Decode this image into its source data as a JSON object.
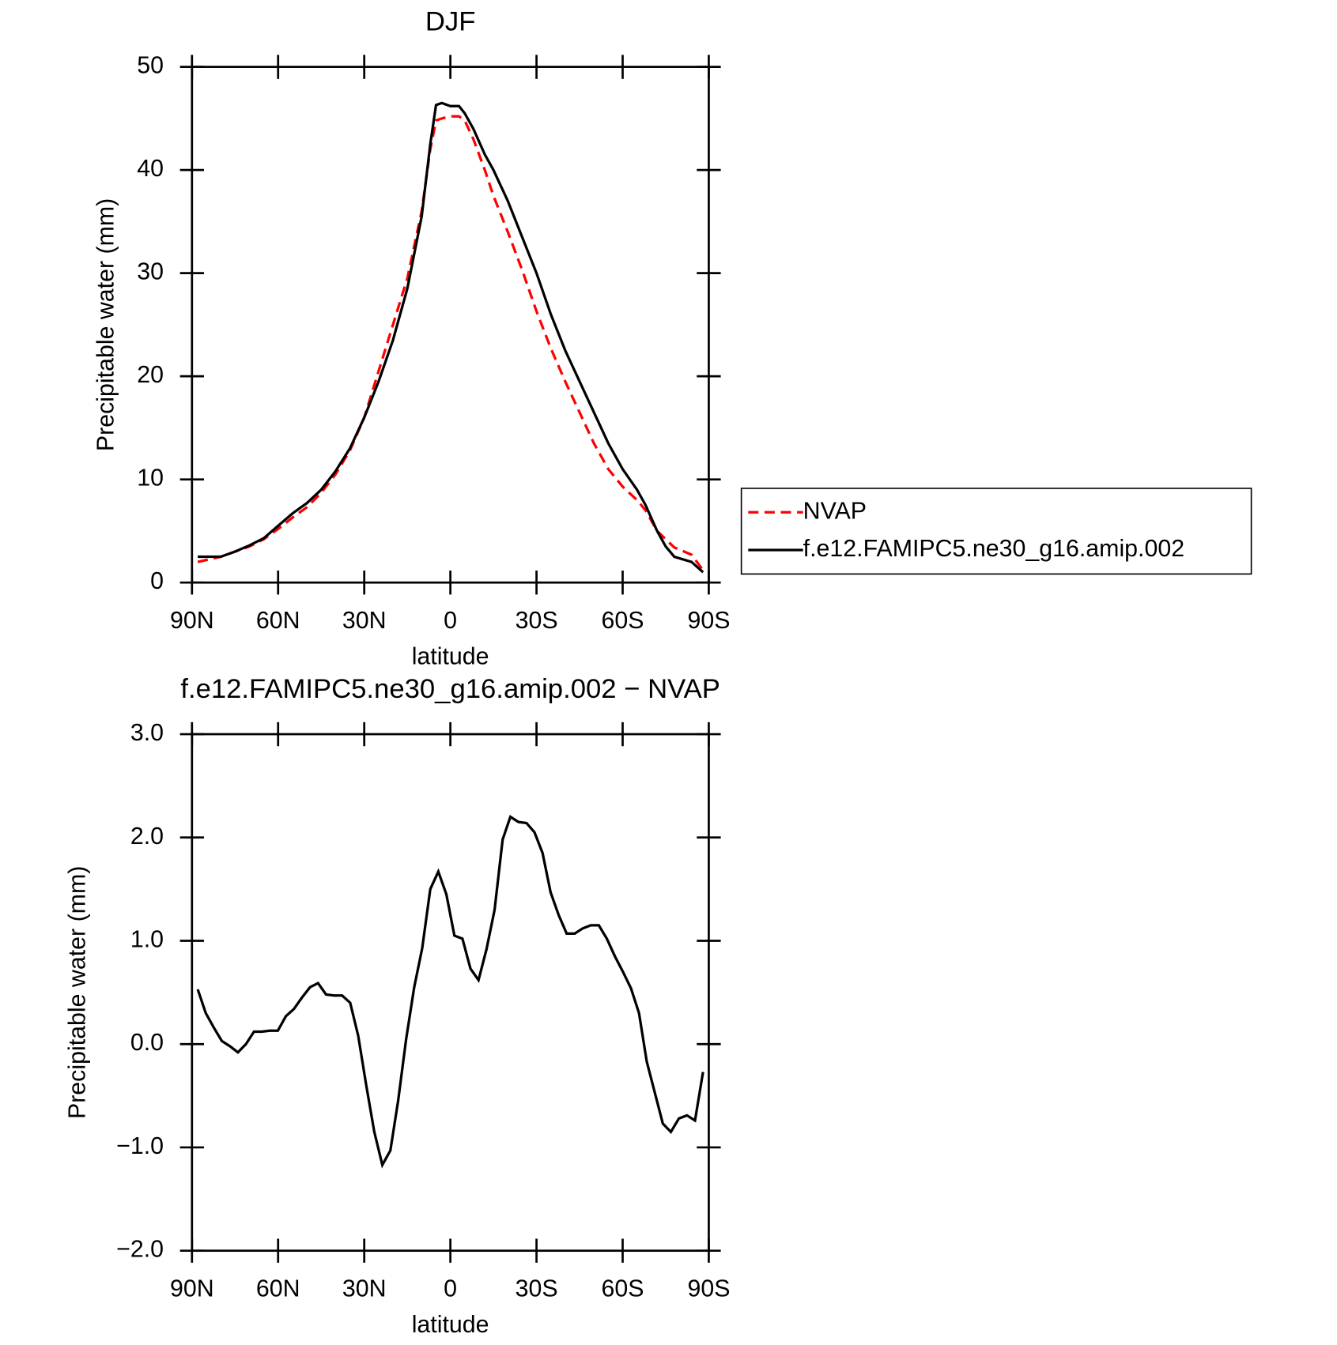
{
  "chart_data": [
    {
      "type": "line",
      "title": "DJF",
      "xlabel": "latitude",
      "ylabel": "Precipitable water (mm)",
      "xlim": [
        90,
        -90
      ],
      "xticks": [
        {
          "value": 90,
          "label": "90N"
        },
        {
          "value": 60,
          "label": "60N"
        },
        {
          "value": 30,
          "label": "30N"
        },
        0,
        {
          "value": -30,
          "label": "30S"
        },
        {
          "value": -60,
          "label": "60S"
        },
        {
          "value": -90,
          "label": "90S"
        }
      ],
      "ylim": [
        0,
        50
      ],
      "yticks": [
        0,
        10,
        20,
        30,
        40,
        50
      ],
      "legend": "right",
      "x": [
        88,
        80,
        75,
        70,
        65,
        60,
        55,
        50,
        45,
        40,
        35,
        30,
        25,
        20,
        15,
        10,
        7,
        5,
        3,
        0,
        -3,
        -5,
        -8,
        -12,
        -15,
        -20,
        -25,
        -30,
        -35,
        -40,
        -45,
        -50,
        -55,
        -60,
        -65,
        -68,
        -72,
        -75,
        -78,
        -84,
        -88
      ],
      "series": [
        {
          "name": "NVAP",
          "color": "#ff0000",
          "dash": "dashed",
          "values": [
            2.0,
            2.5,
            3.0,
            3.5,
            4.2,
            5.2,
            6.3,
            7.3,
            8.7,
            10.5,
            12.8,
            16.0,
            20.5,
            25.0,
            29.5,
            36.0,
            42.0,
            44.8,
            45.0,
            45.2,
            45.2,
            44.8,
            43.0,
            40.0,
            37.5,
            34.0,
            30.3,
            26.3,
            22.7,
            19.5,
            16.5,
            13.5,
            11.0,
            9.3,
            8.0,
            7.0,
            5.0,
            4.2,
            3.4,
            2.7,
            1.2
          ]
        },
        {
          "name": "f.e12.FAMIPC5.ne30_g16.amip.002",
          "color": "#000000",
          "dash": "solid",
          "values": [
            2.5,
            2.5,
            3.0,
            3.6,
            4.3,
            5.5,
            6.7,
            7.7,
            9.0,
            10.8,
            13.0,
            16.0,
            19.5,
            23.5,
            28.5,
            35.5,
            42.5,
            46.3,
            46.5,
            46.2,
            46.2,
            45.5,
            44.0,
            41.5,
            40.0,
            37.0,
            33.5,
            30.0,
            26.0,
            22.5,
            19.5,
            16.5,
            13.5,
            11.0,
            9.0,
            7.5,
            5.0,
            3.5,
            2.5,
            2.0,
            1.0
          ]
        }
      ]
    },
    {
      "type": "line",
      "title": "f.e12.FAMIPC5.ne30_g16.amip.002 − NVAP",
      "xlabel": "latitude",
      "ylabel": "Precipitable water (mm)",
      "xlim": [
        90,
        -90
      ],
      "xticks": [
        {
          "value": 90,
          "label": "90N"
        },
        {
          "value": 60,
          "label": "60N"
        },
        {
          "value": 30,
          "label": "30N"
        },
        0,
        {
          "value": -30,
          "label": "30S"
        },
        {
          "value": -60,
          "label": "60S"
        },
        {
          "value": -90,
          "label": "90S"
        }
      ],
      "ylim": [
        -2,
        3
      ],
      "yticks": [
        {
          "value": -2,
          "label": "−2.0"
        },
        {
          "value": -1,
          "label": "−1.0"
        },
        {
          "value": 0,
          "label": "0.0"
        },
        {
          "value": 1,
          "label": "1.0"
        },
        {
          "value": 2,
          "label": "2.0"
        },
        {
          "value": 3,
          "label": "3.0"
        }
      ],
      "x": [
        88,
        85.2,
        82.4,
        79.6,
        76.8,
        74.0,
        71.2,
        68.4,
        65.7,
        62.9,
        60.1,
        57.3,
        54.5,
        51.7,
        48.9,
        46.1,
        43.3,
        40.5,
        37.7,
        34.9,
        32.1,
        29.3,
        26.5,
        23.7,
        20.9,
        18.2,
        15.4,
        12.6,
        9.8,
        7.0,
        4.2,
        1.4,
        -1.4,
        -4.2,
        -7.0,
        -9.8,
        -12.6,
        -15.4,
        -18.2,
        -20.9,
        -23.7,
        -26.5,
        -29.3,
        -32.1,
        -34.9,
        -37.7,
        -40.5,
        -43.3,
        -46.1,
        -48.9,
        -51.7,
        -54.5,
        -57.3,
        -60.1,
        -62.9,
        -65.7,
        -68.4,
        -71.2,
        -74.0,
        -76.8,
        -79.6,
        -82.4,
        -85.2,
        -88
      ],
      "series": [
        {
          "color": "#000000",
          "dash": "solid",
          "values": [
            0.53,
            0.3,
            0.16,
            0.03,
            -0.02,
            -0.08,
            0.0,
            0.12,
            0.12,
            0.13,
            0.13,
            0.27,
            0.34,
            0.45,
            0.55,
            0.59,
            0.48,
            0.47,
            0.47,
            0.4,
            0.08,
            -0.4,
            -0.85,
            -1.17,
            -1.03,
            -0.55,
            0.05,
            0.55,
            0.93,
            1.5,
            1.67,
            1.45,
            1.05,
            1.02,
            0.73,
            0.62,
            0.92,
            1.3,
            1.98,
            2.2,
            2.15,
            2.14,
            2.05,
            1.85,
            1.47,
            1.25,
            1.07,
            1.07,
            1.12,
            1.15,
            1.15,
            1.02,
            0.85,
            0.7,
            0.54,
            0.3,
            -0.17,
            -0.47,
            -0.77,
            -0.85,
            -0.72,
            -0.69,
            -0.74,
            -0.27
          ]
        }
      ]
    }
  ]
}
